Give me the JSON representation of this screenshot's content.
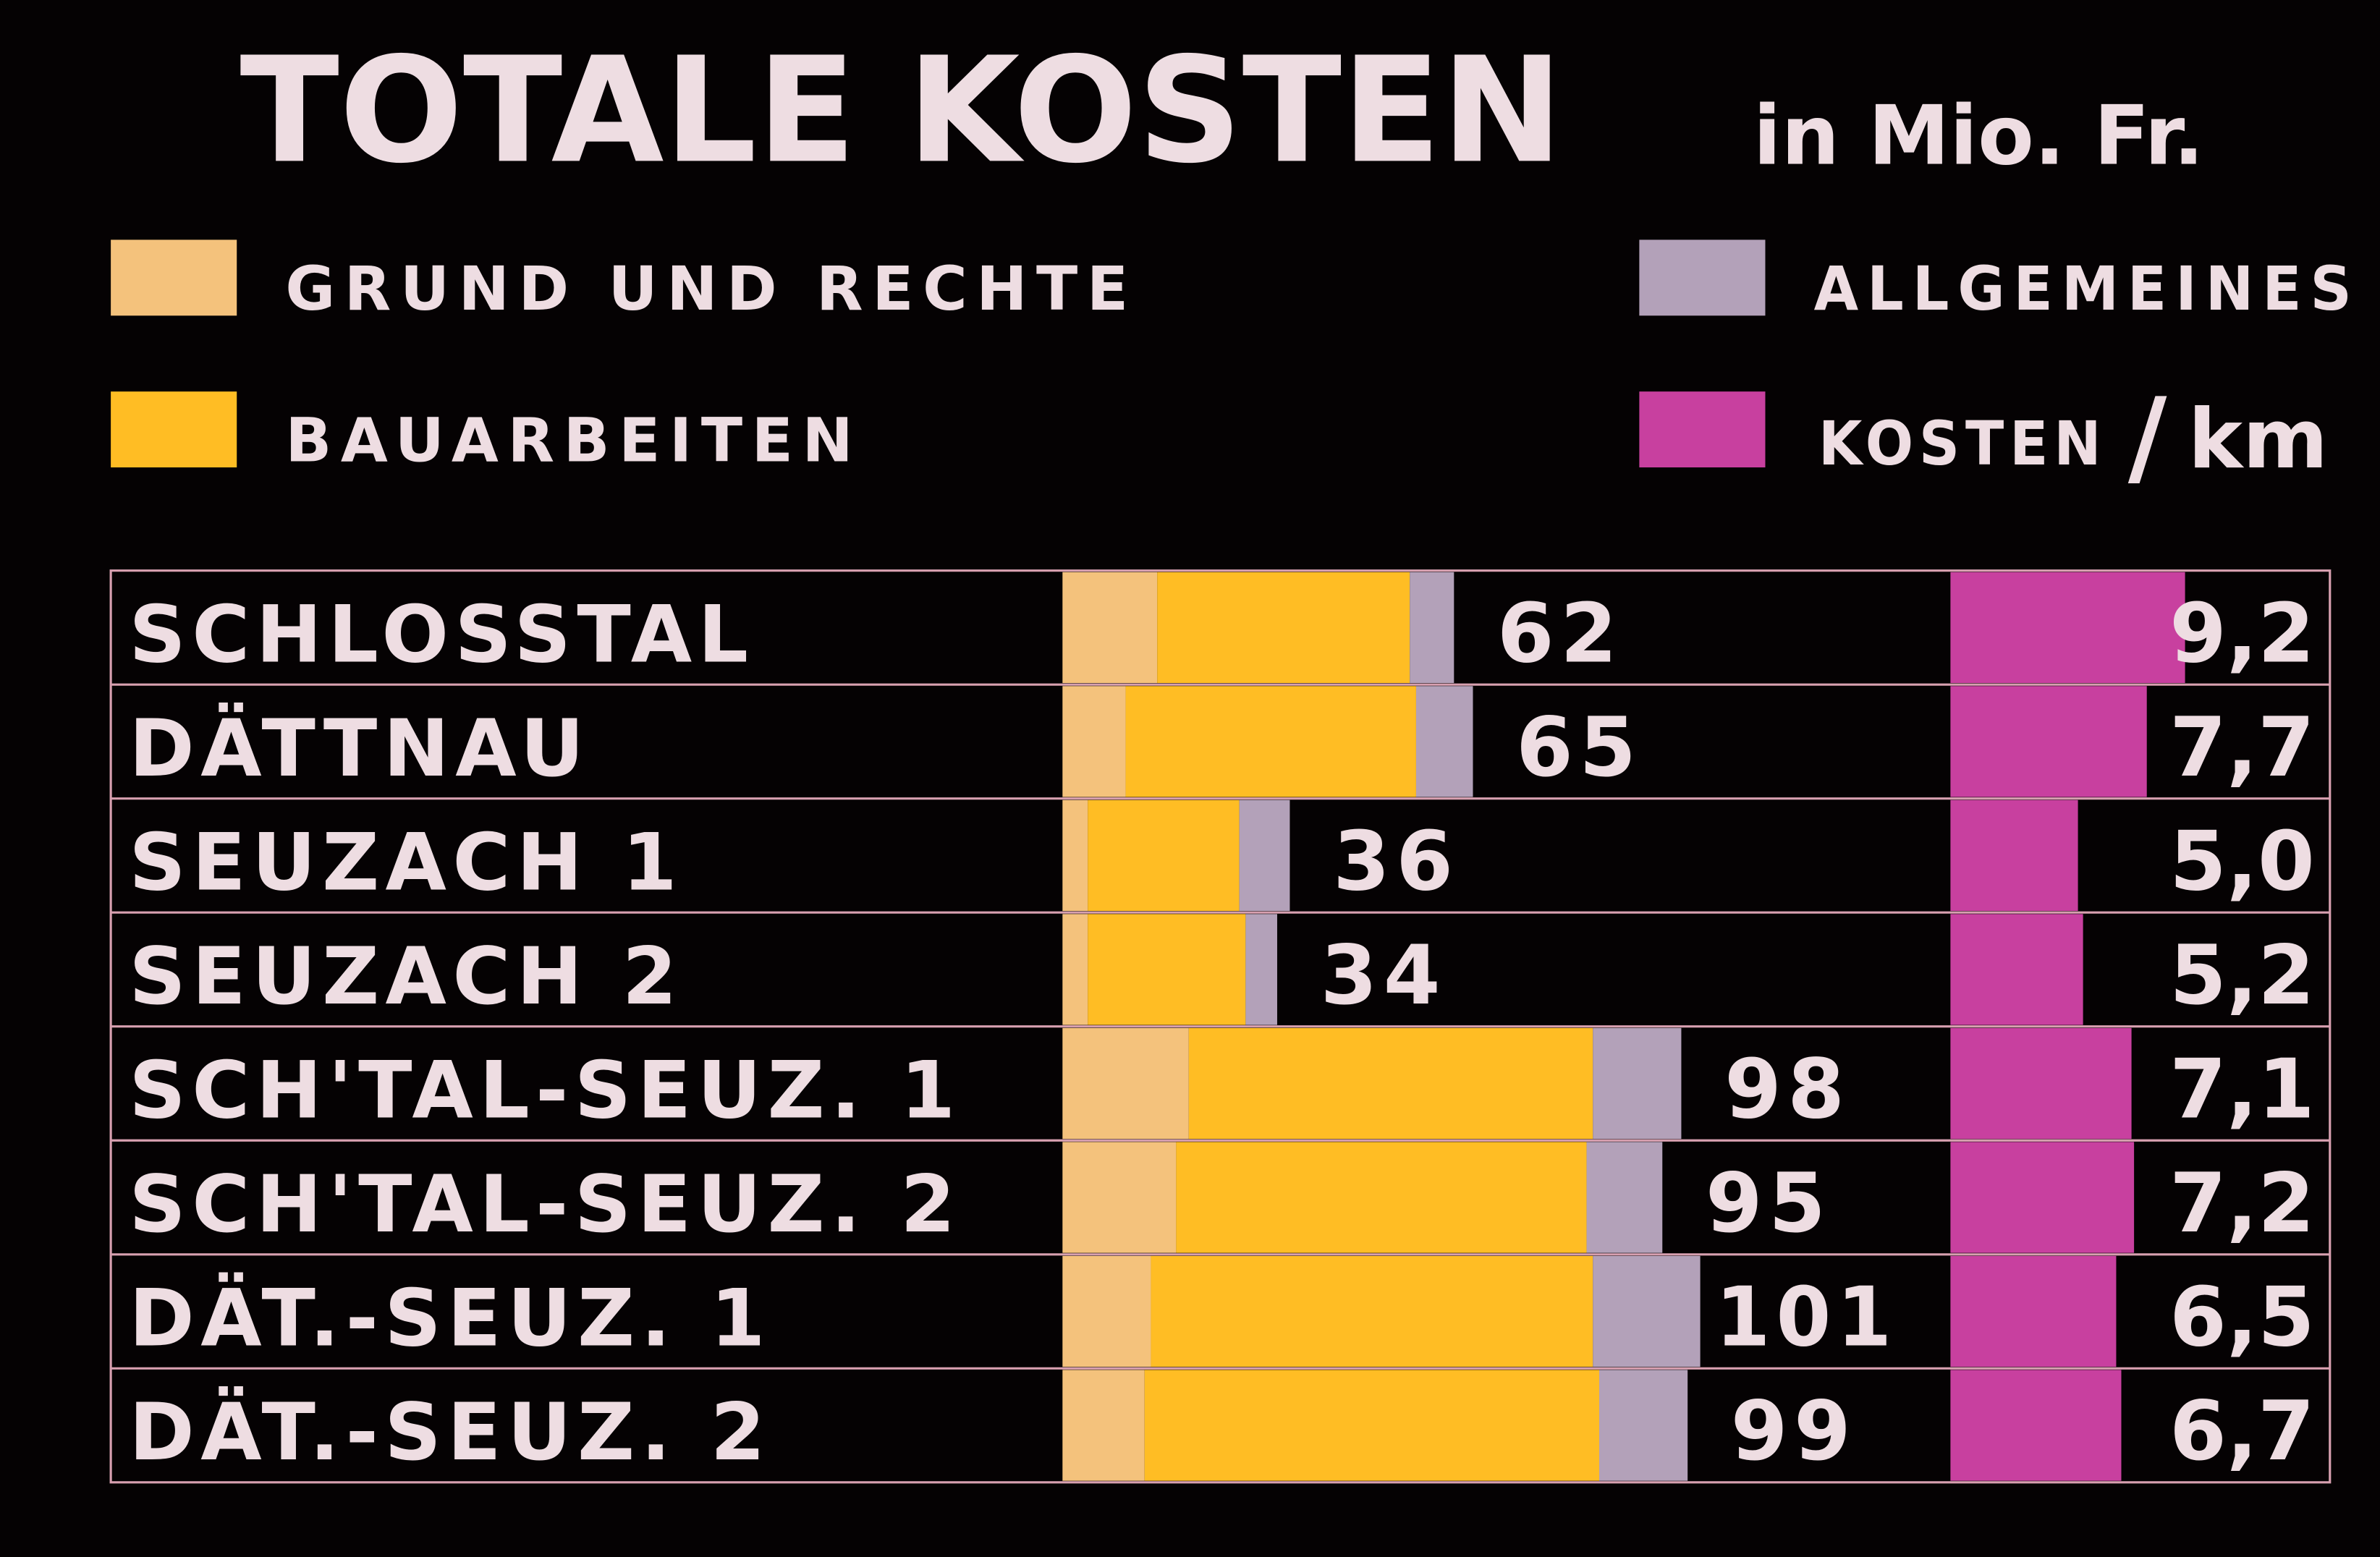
{
  "chart_data": {
    "type": "bar",
    "stacked": true,
    "title": "TOTALE KOSTEN",
    "unit": "in Mio. Fr.",
    "legend": [
      {
        "key": "grund",
        "label": "GRUND UND RECHTE",
        "color": "#f4c27c"
      },
      {
        "key": "bau",
        "label": "BAUARBEITEN",
        "color": "#ffbd24"
      },
      {
        "key": "allg",
        "label": "ALLGEMEINES",
        "color": "#b3a1b9"
      },
      {
        "key": "km",
        "label_prefix": "KOSTEN",
        "label_sep": "/",
        "label_suffix": "km",
        "color": "#c8409f"
      }
    ],
    "categories": [
      "SCHLOSSTAL",
      "DÄTTNAU",
      "SEUZACH 1",
      "SEUZACH 2",
      "SCH'TAL-SEUZ. 1",
      "SCH'TAL-SEUZ. 2",
      "DÄT.-SEUZ. 1",
      "DÄT.-SEUZ. 2"
    ],
    "series": [
      {
        "name": "GRUND UND RECHTE",
        "values": [
          15,
          10,
          4,
          4,
          20,
          18,
          14,
          13
        ]
      },
      {
        "name": "BAUARBEITEN",
        "values": [
          40,
          46,
          24,
          25,
          64,
          65,
          70,
          72
        ]
      },
      {
        "name": "ALLGEMEINES",
        "values": [
          7,
          9,
          8,
          5,
          14,
          12,
          17,
          14
        ]
      }
    ],
    "totals": [
      "62",
      "65",
      "36",
      "34",
      "98",
      "95",
      "101",
      "99"
    ],
    "kosten_km": [
      9.2,
      7.7,
      5.0,
      5.2,
      7.1,
      7.2,
      6.5,
      6.7
    ],
    "kosten_km_labels": [
      "9,2",
      "7,7",
      "5,0",
      "5,2",
      "7,1",
      "7,2",
      "6,5",
      "6,7"
    ],
    "orientation": "horizontal",
    "legend_placement": "top",
    "grid": false,
    "background": "#050203",
    "text_color": "#eedde2",
    "rule_color": "#d8a0b0"
  }
}
